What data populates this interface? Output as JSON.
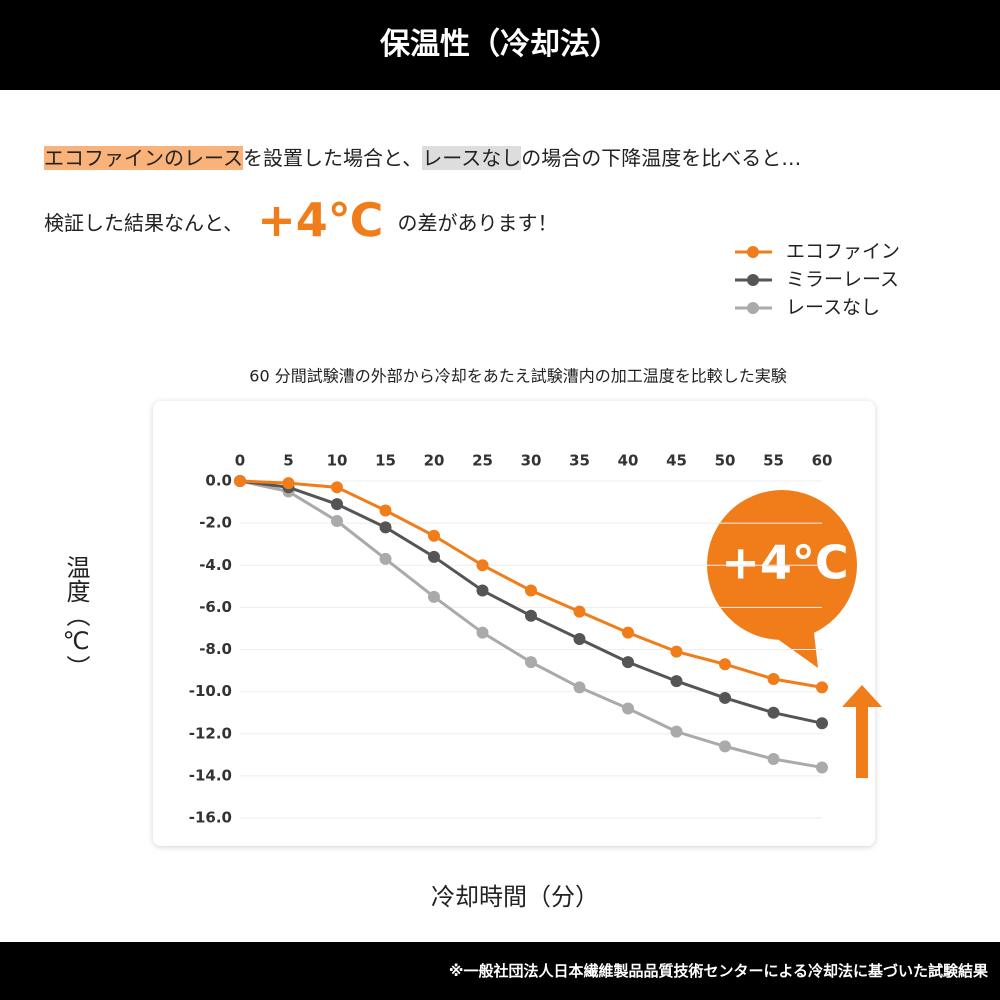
{
  "header": {
    "title": "保温性（冷却法）"
  },
  "intro": {
    "line1": [
      "エコファインのレース",
      "を設置した場合と、",
      "レースなし",
      "の場合の下降温度を比べると…"
    ],
    "line2": [
      "検証した結果なんと、",
      "+4℃",
      "の差があります！"
    ]
  },
  "footer": {
    "note": "※一般社団法人日本繊維製品品質技術センターによる冷却法に基づいた試験結果"
  },
  "chart_data": {
    "type": "line",
    "subtitle": "60 分間試験漕の外部から冷却をあたえ試験漕内の加工温度を比較した実験",
    "x_label": "冷却時間（分）",
    "y_label": "温度（℃）",
    "annotation": "+4°C",
    "x": [
      0,
      5,
      10,
      15,
      20,
      25,
      30,
      35,
      40,
      45,
      50,
      55,
      60
    ],
    "xlim": [
      0,
      60
    ],
    "xticks": [
      0,
      5,
      10,
      15,
      20,
      25,
      30,
      35,
      40,
      45,
      50,
      55,
      60
    ],
    "ylim": [
      -16,
      0
    ],
    "yticks": [
      {
        "value": 0,
        "label": "0.0"
      },
      {
        "value": -2,
        "label": "-2.0"
      },
      {
        "value": -4,
        "label": "-4.0"
      },
      {
        "value": -6,
        "label": "-6.0"
      },
      {
        "value": -8,
        "label": "-8.0"
      },
      {
        "value": -10,
        "label": "-10.0"
      },
      {
        "value": -12,
        "label": "-12.0"
      },
      {
        "value": -14,
        "label": "-14.0"
      },
      {
        "value": -16,
        "label": "-16.0"
      }
    ],
    "grid": true,
    "legend": "upper right",
    "series": [
      {
        "name": "エコファイン",
        "color": "#f07d1a",
        "values": [
          0,
          -0.1,
          -0.3,
          -1.4,
          -2.6,
          -4.0,
          -5.2,
          -6.2,
          -7.2,
          -8.1,
          -8.7,
          -9.4,
          -9.8
        ]
      },
      {
        "name": "ミラーレース",
        "color": "#555555",
        "values": [
          0,
          -0.3,
          -1.1,
          -2.2,
          -3.6,
          -5.2,
          -6.4,
          -7.5,
          -8.6,
          -9.5,
          -10.3,
          -11.0,
          -11.5
        ]
      },
      {
        "name": "レースなし",
        "color": "#aaaaaa",
        "values": [
          0,
          -0.5,
          -1.9,
          -3.7,
          -5.5,
          -7.2,
          -8.6,
          -9.8,
          -10.8,
          -11.9,
          -12.6,
          -13.2,
          -13.6
        ]
      }
    ]
  }
}
